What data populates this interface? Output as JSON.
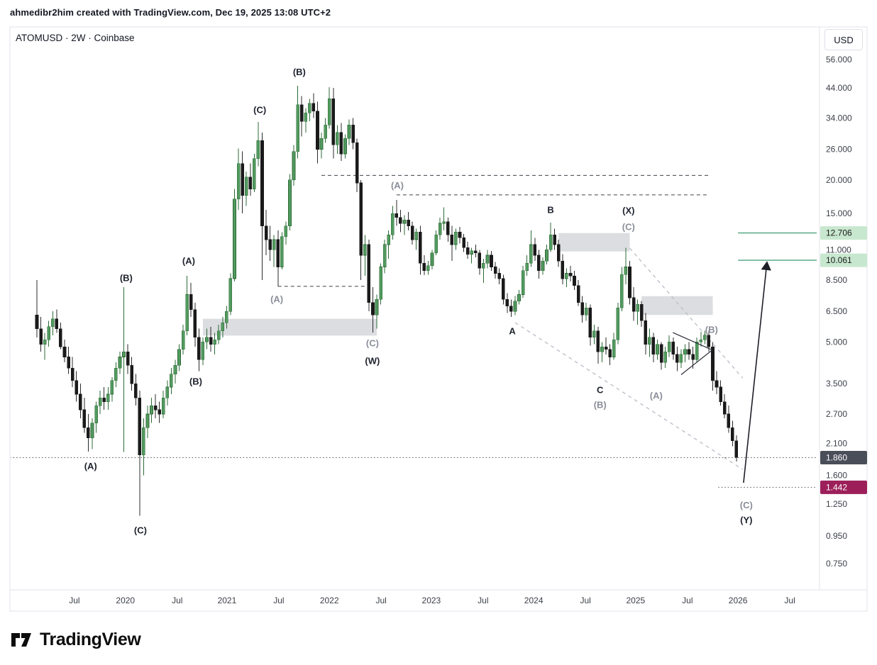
{
  "header": {
    "attribution": "ahmedibr2him created with TradingView.com, Dec 19, 2025 13:08 UTC+2"
  },
  "chart": {
    "legend": "ATOMUSD · 2W · Coinbase",
    "currency_button": "USD"
  },
  "footer": {
    "brand": "TradingView"
  },
  "chart_data": {
    "type": "candlestick",
    "title": "ATOMUSD 2-week candles, Coinbase, log scale",
    "symbol": "ATOMUSD",
    "timeframe": "2W",
    "exchange": "Coinbase",
    "scale": "log",
    "price_range": [
      0.75,
      56
    ],
    "ohlc_format": [
      "open",
      "high",
      "low",
      "close"
    ],
    "candles": [
      [
        6.3,
        8.5,
        5.2,
        5.6
      ],
      [
        5.6,
        6.2,
        4.6,
        4.9
      ],
      [
        4.9,
        5.4,
        4.3,
        5.1
      ],
      [
        5.1,
        6,
        4.8,
        5.7
      ],
      [
        5.7,
        6.5,
        5.3,
        6.1
      ],
      [
        6.1,
        6.6,
        5.4,
        5.6
      ],
      [
        5.6,
        5.9,
        4.7,
        4.8
      ],
      [
        4.8,
        5.1,
        4.2,
        4.4
      ],
      [
        4.4,
        4.8,
        3.8,
        4
      ],
      [
        4,
        4.4,
        3.4,
        3.6
      ],
      [
        3.6,
        3.9,
        3,
        3.2
      ],
      [
        3.2,
        3.5,
        2.6,
        2.8
      ],
      [
        2.8,
        3.1,
        2.3,
        2.4
      ],
      [
        2.4,
        2.7,
        1.96,
        2.2
      ],
      [
        2.2,
        2.6,
        2,
        2.5
      ],
      [
        2.5,
        3,
        2.3,
        2.9
      ],
      [
        2.9,
        3.3,
        2.7,
        3.1
      ],
      [
        3.1,
        3.4,
        2.8,
        3
      ],
      [
        3,
        3.4,
        2.8,
        3.2
      ],
      [
        3.2,
        3.7,
        3,
        3.6
      ],
      [
        3.6,
        4.2,
        3.4,
        4
      ],
      [
        4,
        4.6,
        3.8,
        4.4
      ],
      [
        4.4,
        8,
        1.95,
        4.6
      ],
      [
        4.6,
        4.9,
        3.8,
        4.1
      ],
      [
        4.1,
        4.4,
        3.3,
        3.5
      ],
      [
        3.5,
        3.8,
        2.9,
        3.1
      ],
      [
        3.1,
        3.3,
        1.13,
        1.9
      ],
      [
        1.9,
        2.6,
        1.6,
        2.4
      ],
      [
        2.4,
        2.9,
        2.2,
        2.7
      ],
      [
        2.7,
        3.1,
        2.5,
        2.9
      ],
      [
        2.9,
        3.2,
        2.6,
        2.8
      ],
      [
        2.8,
        3,
        2.5,
        2.7
      ],
      [
        2.7,
        3.3,
        2.6,
        3.1
      ],
      [
        3.1,
        3.6,
        2.9,
        3.4
      ],
      [
        3.4,
        4,
        3.2,
        3.8
      ],
      [
        3.8,
        4.3,
        3.5,
        4.1
      ],
      [
        4.1,
        4.9,
        3.9,
        4.7
      ],
      [
        4.7,
        5.8,
        4.5,
        5.5
      ],
      [
        5.5,
        8.8,
        5.3,
        7.5
      ],
      [
        7.5,
        8.3,
        6.2,
        6.6
      ],
      [
        6.6,
        7,
        4.8,
        5.2
      ],
      [
        5.2,
        5.6,
        3.9,
        4.3
      ],
      [
        4.3,
        5.2,
        4.1,
        5
      ],
      [
        5,
        5.6,
        4.7,
        5.2
      ],
      [
        5.2,
        5.7,
        4.6,
        4.9
      ],
      [
        4.9,
        5.4,
        4.5,
        5.1
      ],
      [
        5.1,
        5.8,
        4.9,
        5.5
      ],
      [
        5.5,
        6.2,
        5.2,
        5.9
      ],
      [
        5.9,
        6.8,
        5.6,
        6.5
      ],
      [
        6.5,
        9,
        6.3,
        8.6
      ],
      [
        8.6,
        18.5,
        8.4,
        17
      ],
      [
        17,
        26.2,
        15.5,
        23
      ],
      [
        23,
        25.5,
        15,
        17.5
      ],
      [
        17.5,
        21.5,
        16,
        20.5
      ],
      [
        20.5,
        23,
        17.5,
        18.5
      ],
      [
        18.5,
        25,
        18,
        24
      ],
      [
        24,
        32.8,
        22.5,
        28
      ],
      [
        28,
        30,
        8.5,
        13.5
      ],
      [
        13.5,
        15.5,
        10.5,
        12
      ],
      [
        12,
        13.5,
        10,
        11
      ],
      [
        11,
        12.5,
        9.5,
        12
      ],
      [
        12,
        13,
        8.05,
        9.5
      ],
      [
        9.5,
        12.8,
        9.3,
        12.3
      ],
      [
        12.3,
        14,
        11.5,
        13.5
      ],
      [
        13.5,
        21,
        13,
        20
      ],
      [
        20,
        27,
        19,
        25.5
      ],
      [
        25.5,
        44.7,
        24,
        38
      ],
      [
        38,
        41,
        29,
        33
      ],
      [
        33,
        37,
        30,
        35.5
      ],
      [
        35.5,
        40,
        33,
        38.5
      ],
      [
        38.5,
        42,
        34,
        36
      ],
      [
        36,
        39,
        23,
        26
      ],
      [
        26,
        30,
        24,
        28.5
      ],
      [
        28.5,
        34,
        27.5,
        32
      ],
      [
        32,
        44.2,
        31,
        40
      ],
      [
        40,
        44,
        24,
        27
      ],
      [
        27,
        32,
        25,
        30
      ],
      [
        30,
        32.5,
        23.5,
        25
      ],
      [
        25,
        29.5,
        24,
        28.5
      ],
      [
        28.5,
        33.5,
        27,
        32
      ],
      [
        32,
        34,
        26,
        27.5
      ],
      [
        27.5,
        28.5,
        18,
        19.5
      ],
      [
        19.5,
        20,
        8.5,
        10.5
      ],
      [
        10.5,
        12.5,
        8.8,
        11.5
      ],
      [
        11.5,
        12,
        6.5,
        7
      ],
      [
        7,
        8,
        5.42,
        6.3
      ],
      [
        6.3,
        7.5,
        5.6,
        7.2
      ],
      [
        7.2,
        9.8,
        6.9,
        9.5
      ],
      [
        9.5,
        12,
        9,
        11.5
      ],
      [
        11.5,
        13,
        10.2,
        12.5
      ],
      [
        12.5,
        16,
        12,
        15
      ],
      [
        15,
        16.85,
        13.5,
        14.5
      ],
      [
        14.5,
        15.5,
        12.8,
        13.8
      ],
      [
        13.8,
        14.8,
        12.5,
        14.2
      ],
      [
        14.2,
        15.2,
        13,
        13.5
      ],
      [
        13.5,
        14,
        11.5,
        12
      ],
      [
        12,
        13.2,
        11,
        12.8
      ],
      [
        12.8,
        13.5,
        8.9,
        9.8
      ],
      [
        9.8,
        10.5,
        8.85,
        9.2
      ],
      [
        9.2,
        10,
        8.9,
        9.6
      ],
      [
        9.6,
        11,
        9.3,
        10.7
      ],
      [
        10.7,
        13,
        10.5,
        12.5
      ],
      [
        12.5,
        14.5,
        12,
        13.8
      ],
      [
        13.8,
        15.8,
        13,
        14
      ],
      [
        14,
        14.5,
        11.8,
        12.5
      ],
      [
        12.5,
        13.5,
        10,
        11.5
      ],
      [
        11.5,
        13.2,
        11,
        12.8
      ],
      [
        12.8,
        13.4,
        11.6,
        12.2
      ],
      [
        12.2,
        12.6,
        10.8,
        11.2
      ],
      [
        11.2,
        11.8,
        10.2,
        10.6
      ],
      [
        10.6,
        11.2,
        9.8,
        10.9
      ],
      [
        10.9,
        11.5,
        10.3,
        10.7
      ],
      [
        10.7,
        11,
        8.9,
        9.4
      ],
      [
        9.4,
        10.2,
        8.3,
        9.8
      ],
      [
        9.8,
        11,
        9.4,
        10.5
      ],
      [
        10.5,
        10.9,
        9.2,
        9.5
      ],
      [
        9.5,
        9.9,
        8.6,
        9
      ],
      [
        9,
        9.4,
        8.2,
        8.6
      ],
      [
        8.6,
        8.9,
        6.9,
        7.2
      ],
      [
        7.2,
        7.6,
        6.4,
        6.8
      ],
      [
        6.8,
        7.2,
        6.2,
        6.5
      ],
      [
        6.5,
        7.4,
        6.3,
        7.1
      ],
      [
        7.1,
        7.8,
        6.9,
        7.5
      ],
      [
        7.5,
        9.6,
        7.3,
        9.2
      ],
      [
        9.2,
        10.5,
        8.8,
        9.8
      ],
      [
        9.8,
        13,
        9.5,
        11.5
      ],
      [
        11.5,
        12.2,
        10,
        10.5
      ],
      [
        10.5,
        11,
        8.6,
        9.2
      ],
      [
        9.2,
        10.3,
        8.9,
        10
      ],
      [
        10,
        11.5,
        9.7,
        11
      ],
      [
        11,
        13.9,
        10.8,
        12.5
      ],
      [
        12.5,
        13.2,
        11,
        11.5
      ],
      [
        11.5,
        12,
        9.5,
        10
      ],
      [
        10,
        10.6,
        8.2,
        8.6
      ],
      [
        8.6,
        9.4,
        8,
        9
      ],
      [
        9,
        9.6,
        8.4,
        8.8
      ],
      [
        8.8,
        9.2,
        7.8,
        8.1
      ],
      [
        8.1,
        8.5,
        6.8,
        7
      ],
      [
        7,
        7.4,
        5.9,
        6.3
      ],
      [
        6.3,
        7,
        6,
        6.7
      ],
      [
        6.7,
        6.9,
        4.85,
        5.2
      ],
      [
        5.2,
        5.8,
        4.9,
        5.5
      ],
      [
        5.5,
        5.7,
        4.15,
        4.6
      ],
      [
        4.6,
        5,
        4.2,
        4.8
      ],
      [
        4.8,
        5.2,
        4.5,
        4.7
      ],
      [
        4.7,
        4.9,
        4.1,
        4.4
      ],
      [
        4.4,
        5.4,
        4.3,
        5.1
      ],
      [
        5.1,
        7,
        4.9,
        6.7
      ],
      [
        6.7,
        9.5,
        6.5,
        8.9
      ],
      [
        8.9,
        11.2,
        8.2,
        9.5
      ],
      [
        9.5,
        10,
        6.9,
        7.3
      ],
      [
        7.3,
        8,
        6,
        6.5
      ],
      [
        6.5,
        7.2,
        5.8,
        6.9
      ],
      [
        6.9,
        7.1,
        5.7,
        6
      ],
      [
        6,
        6.4,
        4.5,
        4.9
      ],
      [
        4.9,
        5.6,
        4.4,
        5.2
      ],
      [
        5.2,
        5.4,
        4.2,
        4.5
      ],
      [
        4.5,
        5.1,
        4.3,
        4.9
      ],
      [
        4.9,
        5,
        3.95,
        4.2
      ],
      [
        4.2,
        4.8,
        4,
        4.6
      ],
      [
        4.6,
        5.3,
        4.4,
        5
      ],
      [
        5,
        5.2,
        4.3,
        4.5
      ],
      [
        4.5,
        4.8,
        3.9,
        4.2
      ],
      [
        4.2,
        4.7,
        4,
        4.5
      ],
      [
        4.5,
        4.9,
        4.2,
        4.7
      ],
      [
        4.7,
        5,
        4.3,
        4.5
      ],
      [
        4.5,
        4.8,
        3.98,
        4.3
      ],
      [
        4.3,
        5.2,
        4.2,
        5
      ],
      [
        5,
        5.45,
        4.8,
        5.1
      ],
      [
        5.1,
        5.5,
        4.9,
        5.3
      ],
      [
        5.3,
        5.5,
        4.6,
        4.8
      ],
      [
        4.8,
        5,
        3.3,
        3.6
      ],
      [
        3.6,
        3.9,
        3.2,
        3.4
      ],
      [
        3.4,
        3.6,
        2.9,
        3
      ],
      [
        3,
        3.2,
        2.6,
        2.7
      ],
      [
        2.7,
        2.9,
        2.3,
        2.4
      ],
      [
        2.4,
        2.55,
        2.05,
        2.15
      ],
      [
        2.15,
        2.25,
        1.8,
        1.86
      ]
    ],
    "y_axis": {
      "ticks": [
        {
          "label": "56.000",
          "price": 56
        },
        {
          "label": "44.000",
          "price": 44
        },
        {
          "label": "34.000",
          "price": 34
        },
        {
          "label": "26.000",
          "price": 26
        },
        {
          "label": "20.000",
          "price": 20
        },
        {
          "label": "15.000",
          "price": 15
        },
        {
          "label": "11.000",
          "price": 11
        },
        {
          "label": "8.500",
          "price": 8.5
        },
        {
          "label": "6.500",
          "price": 6.5
        },
        {
          "label": "5.000",
          "price": 5
        },
        {
          "label": "3.500",
          "price": 3.5
        },
        {
          "label": "2.700",
          "price": 2.7
        },
        {
          "label": "2.100",
          "price": 2.1
        },
        {
          "label": "1.600",
          "price": 1.6
        },
        {
          "label": "1.250",
          "price": 1.25
        },
        {
          "label": "0.950",
          "price": 0.95
        },
        {
          "label": "0.750",
          "price": 0.75
        }
      ],
      "currency": "USD",
      "last_price_badge": {
        "label": "1.860",
        "price": 1.86
      },
      "alert_badge": {
        "label": "1.442",
        "price": 1.442
      },
      "target_badges": [
        {
          "label": "12.706",
          "price": 12.706
        },
        {
          "label": "10.061",
          "price": 10.061
        }
      ]
    },
    "x_axis": {
      "ticks": [
        {
          "label": "Jul",
          "i": 9.5
        },
        {
          "label": "2020",
          "i": 22.4
        },
        {
          "label": "Jul",
          "i": 35.5
        },
        {
          "label": "2021",
          "i": 48.1
        },
        {
          "label": "Jul",
          "i": 61.2
        },
        {
          "label": "2022",
          "i": 74
        },
        {
          "label": "Jul",
          "i": 87.1
        },
        {
          "label": "2023",
          "i": 99.8
        },
        {
          "label": "Jul",
          "i": 112.9
        },
        {
          "label": "2024",
          "i": 125.7
        },
        {
          "label": "Jul",
          "i": 138.8
        },
        {
          "label": "2025",
          "i": 151.5
        },
        {
          "label": "Jul",
          "i": 164.6
        },
        {
          "label": "2026",
          "i": 177.4
        },
        {
          "label": "Jul",
          "i": 190.5
        }
      ]
    },
    "wave_labels": [
      {
        "text": "(A)",
        "i": 13.6,
        "price": 1.73,
        "tone": "dark"
      },
      {
        "text": "(B)",
        "i": 22.6,
        "price": 8.66,
        "tone": "dark"
      },
      {
        "text": "(C)",
        "i": 26.2,
        "price": 1.0,
        "tone": "dark"
      },
      {
        "text": "(A)",
        "i": 38.4,
        "price": 10.0,
        "tone": "dark"
      },
      {
        "text": "(B)",
        "i": 40.2,
        "price": 3.57,
        "tone": "dark"
      },
      {
        "text": "(C)",
        "i": 56.4,
        "price": 36.4,
        "tone": "dark"
      },
      {
        "text": "(B)",
        "i": 66.4,
        "price": 50.4,
        "tone": "dark"
      },
      {
        "text": "(A)",
        "i": 60.7,
        "price": 7.21,
        "tone": "gray"
      },
      {
        "text": "(C)",
        "i": 84.9,
        "price": 4.95,
        "tone": "gray"
      },
      {
        "text": "(W)",
        "i": 84.9,
        "price": 4.26,
        "tone": "dark"
      },
      {
        "text": "(A)",
        "i": 91.2,
        "price": 19.1,
        "tone": "gray"
      },
      {
        "text": "A",
        "i": 120.3,
        "price": 5.49,
        "tone": "dark"
      },
      {
        "text": "B",
        "i": 130,
        "price": 15.5,
        "tone": "dark"
      },
      {
        "text": "C",
        "i": 142.5,
        "price": 3.32,
        "tone": "dark"
      },
      {
        "text": "(B)",
        "i": 142.5,
        "price": 2.92,
        "tone": "gray"
      },
      {
        "text": "(X)",
        "i": 149.7,
        "price": 15.4,
        "tone": "dark"
      },
      {
        "text": "(C)",
        "i": 149.7,
        "price": 13.4,
        "tone": "gray"
      },
      {
        "text": "(A)",
        "i": 156.7,
        "price": 3.16,
        "tone": "gray"
      },
      {
        "text": "(B)",
        "i": 170.7,
        "price": 5.56,
        "tone": "gray"
      },
      {
        "text": "(C)",
        "i": 179.5,
        "price": 1.24,
        "tone": "gray"
      },
      {
        "text": "(Y)",
        "i": 179.5,
        "price": 1.09,
        "tone": "dark"
      }
    ],
    "zones": [
      {
        "i1": 42,
        "i2": 86,
        "p1": 6.1,
        "p2": 5.28
      },
      {
        "i1": 132,
        "i2": 150,
        "p1": 12.7,
        "p2": 10.85
      },
      {
        "i1": 153,
        "i2": 171,
        "p1": 7.4,
        "p2": 6.3
      }
    ],
    "dashed_hlines": [
      {
        "price": 20.8,
        "i1": 72,
        "i2": 170
      },
      {
        "price": 17.6,
        "i1": 91,
        "i2": 170
      },
      {
        "price": 8.05,
        "i1": 61,
        "i2": 84
      }
    ],
    "dotted_hlines": [
      {
        "price": 1.86,
        "i1": -6.8,
        "i2": 197.5,
        "role": "last-price"
      },
      {
        "price": 1.442,
        "i1": 172.4,
        "i2": 197.5,
        "role": "alert-level"
      }
    ],
    "channel_lines": [
      {
        "i1": 150,
        "p1": 11.16,
        "i2": 178.6,
        "p2": 3.67
      },
      {
        "i1": 121,
        "p1": 5.9,
        "i2": 178.6,
        "p2": 1.68
      }
    ],
    "pattern_lines": [
      {
        "i1": 160.9,
        "p1": 5.42,
        "i2": 170.9,
        "p2": 4.67
      },
      {
        "i1": 163,
        "p1": 3.78,
        "i2": 170.9,
        "p2": 4.67
      }
    ],
    "target_lines": [
      {
        "price": 12.706,
        "i1": 177.4,
        "i2": 197.5
      },
      {
        "price": 10.061,
        "i1": 177.4,
        "i2": 197.5
      }
    ],
    "projection_arrow": {
      "i1": 178.8,
      "p1": 1.5,
      "i2": 184.7,
      "p2": 9.8
    },
    "colors": {
      "up": "#539a5f",
      "up_stroke": "#2c6b37",
      "down": "#1a1a1a",
      "wave_dark": "#1e222d",
      "wave_gray": "#8a8e99",
      "zone_fill": "rgba(130,134,145,0.28)",
      "channel": "#b9bdc7",
      "dashed_line": "#3e4149",
      "dotted_line": "#555555",
      "target_line": "#4aa47e",
      "target_badge_bg": "#c8e7cf",
      "target_badge_text": "#1a1a1a",
      "last_badge_bg": "#4a4e59",
      "alert_badge_bg": "#9c1f5a",
      "badge_text": "#ffffff",
      "axis_text": "#3c4049",
      "border": "#e0e3eb",
      "arrow": "#1d1f27"
    }
  }
}
